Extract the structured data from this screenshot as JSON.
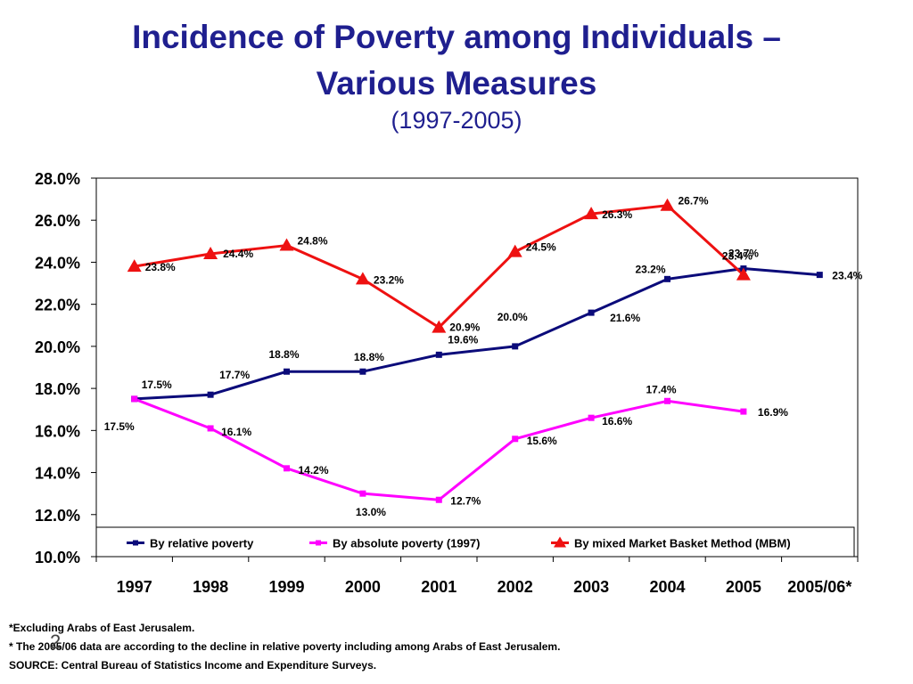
{
  "slide": {
    "title_line1": "Incidence of Poverty among Individuals –",
    "title_line2": "Various Measures",
    "subtitle": "(1997-2005)",
    "slide_number": "2",
    "notes": [
      "*Excluding Arabs of East Jerusalem.",
      "* The 2005/06 data are according to the decline in relative poverty including among Arabs of East Jerusalem.",
      "SOURCE: Central Bureau of Statistics Income and Expenditure Surveys."
    ]
  },
  "chart_data": {
    "type": "line",
    "title": "",
    "xlabel": "",
    "ylabel": "",
    "categories": [
      "1997",
      "1998",
      "1999",
      "2000",
      "2001",
      "2002",
      "2003",
      "2004",
      "2005",
      "2005/06*"
    ],
    "yticks": [
      "10.0%",
      "12.0%",
      "14.0%",
      "16.0%",
      "18.0%",
      "20.0%",
      "22.0%",
      "24.0%",
      "26.0%",
      "28.0%"
    ],
    "ylim": [
      10,
      28
    ],
    "grid": false,
    "legend_position": "bottom-inside",
    "series": [
      {
        "name": "By relative poverty",
        "color": "#0b0b7a",
        "marker": "square",
        "values": [
          17.5,
          17.7,
          18.8,
          18.8,
          19.6,
          20.0,
          21.6,
          23.2,
          23.7,
          23.4
        ],
        "labels": [
          "17.5%",
          "17.7%",
          "18.8%",
          "18.8%",
          "19.6%",
          "20.0%",
          "21.6%",
          "23.2%",
          "23.7%",
          "23.4%"
        ]
      },
      {
        "name": "By absolute poverty (1997)",
        "color": "#ff00ff",
        "marker": "square",
        "values": [
          17.5,
          16.1,
          14.2,
          13.0,
          12.7,
          15.6,
          16.6,
          17.4,
          16.9,
          null
        ],
        "labels": [
          "17.5%",
          "16.1%",
          "14.2%",
          "13.0%",
          "12.7%",
          "15.6%",
          "16.6%",
          "17.4%",
          "16.9%",
          null
        ]
      },
      {
        "name": "By mixed Market Basket Method (MBM)",
        "color": "#ee1111",
        "marker": "triangle",
        "values": [
          23.8,
          24.4,
          24.8,
          23.2,
          20.9,
          24.5,
          26.3,
          26.7,
          23.4,
          null
        ],
        "labels": [
          "23.8%",
          "24.4%",
          "24.8%",
          "23.2%",
          "20.9%",
          "24.5%",
          "26.3%",
          "26.7%",
          "23.4%",
          null
        ]
      }
    ]
  }
}
